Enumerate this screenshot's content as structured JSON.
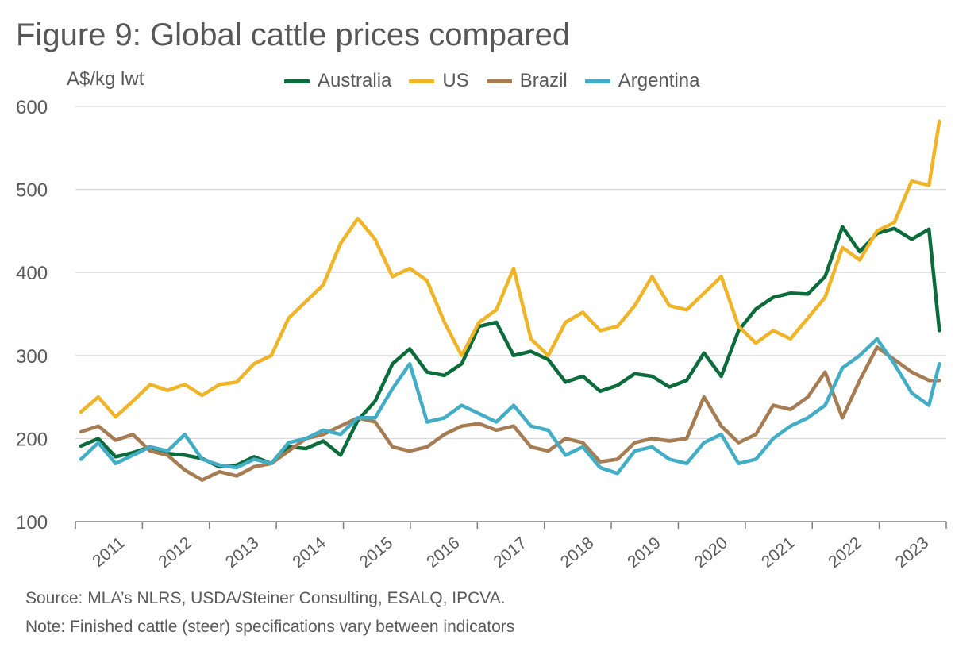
{
  "figure_title": "Figure 9: Global cattle prices compared",
  "unit_label": "A$/kg lwt",
  "source": "Source: MLA’s NLRS, USDA/Steiner Consulting, ESALQ, IPCVA.",
  "note": "Note: Finished cattle (steer) specifications vary between indicators",
  "chart_data": {
    "type": "line",
    "title": "Figure 9: Global cattle prices compared",
    "ylabel": "A$/kg lwt",
    "xlabel": "",
    "ylim": [
      100,
      600
    ],
    "yticks": [
      100,
      200,
      300,
      400,
      500,
      600
    ],
    "xlim": [
      2010.92,
      2023.5
    ],
    "xticks": [
      "2011",
      "2012",
      "2013",
      "2014",
      "2015",
      "2016",
      "2017",
      "2018",
      "2019",
      "2020",
      "2021",
      "2022",
      "2023"
    ],
    "grid": true,
    "legend_position": "top",
    "x": [
      2011.0,
      2011.25,
      2011.5,
      2011.75,
      2012.0,
      2012.25,
      2012.5,
      2012.75,
      2013.0,
      2013.25,
      2013.5,
      2013.75,
      2014.0,
      2014.25,
      2014.5,
      2014.75,
      2015.0,
      2015.25,
      2015.5,
      2015.75,
      2016.0,
      2016.25,
      2016.5,
      2016.75,
      2017.0,
      2017.25,
      2017.5,
      2017.75,
      2018.0,
      2018.25,
      2018.5,
      2018.75,
      2019.0,
      2019.25,
      2019.5,
      2019.75,
      2020.0,
      2020.25,
      2020.5,
      2020.75,
      2021.0,
      2021.25,
      2021.5,
      2021.75,
      2022.0,
      2022.25,
      2022.5,
      2022.75,
      2023.0,
      2023.25,
      2023.4
    ],
    "series": [
      {
        "name": "Australia",
        "color": "#0b6b3a",
        "values": [
          191,
          200,
          178,
          183,
          190,
          182,
          180,
          176,
          166,
          168,
          178,
          170,
          190,
          188,
          197,
          180,
          222,
          245,
          290,
          308,
          280,
          276,
          290,
          335,
          340,
          300,
          305,
          295,
          268,
          275,
          257,
          264,
          278,
          275,
          262,
          270,
          303,
          275,
          330,
          356,
          370,
          375,
          374,
          395,
          455,
          425,
          447,
          453,
          440,
          452,
          330
        ]
      },
      {
        "name": "US",
        "color": "#f0b429",
        "values": [
          232,
          250,
          226,
          245,
          265,
          258,
          265,
          252,
          265,
          268,
          290,
          300,
          345,
          365,
          385,
          435,
          465,
          440,
          395,
          405,
          390,
          340,
          300,
          340,
          355,
          405,
          320,
          300,
          340,
          352,
          330,
          335,
          360,
          395,
          360,
          355,
          375,
          395,
          335,
          315,
          330,
          320,
          345,
          370,
          430,
          415,
          450,
          460,
          510,
          505,
          582
        ]
      },
      {
        "name": "Brazil",
        "color": "#a67c52",
        "values": [
          208,
          215,
          198,
          205,
          185,
          180,
          162,
          150,
          160,
          155,
          166,
          170,
          185,
          200,
          205,
          215,
          225,
          220,
          190,
          185,
          190,
          205,
          215,
          218,
          210,
          215,
          190,
          185,
          200,
          195,
          172,
          175,
          195,
          200,
          197,
          200,
          250,
          215,
          195,
          205,
          240,
          235,
          250,
          280,
          225,
          270,
          310,
          295,
          280,
          270,
          270
        ]
      },
      {
        "name": "Argentina",
        "color": "#44adc6",
        "values": [
          175,
          195,
          170,
          180,
          190,
          185,
          205,
          175,
          168,
          165,
          175,
          170,
          195,
          200,
          210,
          205,
          225,
          225,
          260,
          290,
          220,
          225,
          240,
          230,
          220,
          240,
          215,
          210,
          180,
          190,
          165,
          158,
          185,
          190,
          175,
          170,
          195,
          205,
          170,
          175,
          200,
          215,
          225,
          240,
          285,
          300,
          320,
          290,
          255,
          240,
          290
        ]
      }
    ]
  }
}
